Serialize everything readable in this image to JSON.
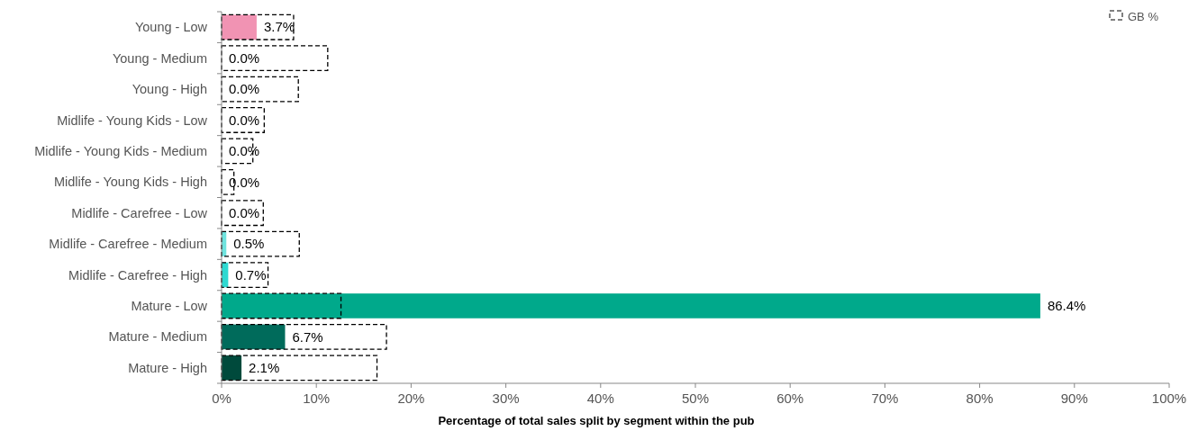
{
  "chart_data": {
    "type": "bar",
    "orientation": "horizontal",
    "xlabel": "Percentage of total sales split by segment within the pub",
    "categories": [
      "Young - Low",
      "Young - Medium",
      "Young - High",
      "Midlife - Young Kids - Low",
      "Midlife - Young Kids - Medium",
      "Midlife - Young Kids - High",
      "Midlife - Carefree - Low",
      "Midlife - Carefree - Medium",
      "Midlife - Carefree - High",
      "Mature - Low",
      "Mature - Medium",
      "Mature - High"
    ],
    "series": [
      {
        "colors": [
          "#f193b3",
          "#6fe3de",
          "#6fe3de",
          "#6fe3de",
          "#6fe3de",
          "#6fe3de",
          "#6fe3de",
          "#6fe3de",
          "#2ed9d1",
          "#00a98b",
          "#006b5b",
          "#004a3c"
        ],
        "values": [
          3.7,
          0,
          0,
          0,
          0,
          0,
          0,
          0.5,
          0.7,
          86.4,
          6.7,
          2.1
        ],
        "value_labels": [
          "3.7%",
          "0.0%",
          "0.0%",
          "0.0%",
          "0.0%",
          "0.0%",
          "0.0%",
          "0.5%",
          "0.7%",
          "86.4%",
          "6.7%",
          "2.1%"
        ]
      },
      {
        "name": "GB %",
        "color": "#000000",
        "line_style": "dashed",
        "values": [
          7.6,
          11.2,
          8.1,
          4.5,
          3.3,
          1.3,
          4.4,
          8.2,
          4.9,
          12.6,
          17.4,
          16.4
        ]
      }
    ],
    "xlim": [
      0,
      100
    ],
    "xticks": [
      {
        "value": 0,
        "label": "0%"
      },
      {
        "value": 10,
        "label": "10%"
      },
      {
        "value": 20,
        "label": "20%"
      },
      {
        "value": 30,
        "label": "30%"
      },
      {
        "value": 40,
        "label": "40%"
      },
      {
        "value": 50,
        "label": "50%"
      },
      {
        "value": 60,
        "label": "60%"
      },
      {
        "value": 70,
        "label": "70%"
      },
      {
        "value": 80,
        "label": "80%"
      },
      {
        "value": 90,
        "label": "90%"
      },
      {
        "value": 100,
        "label": "100%"
      }
    ],
    "legend": "top right"
  }
}
